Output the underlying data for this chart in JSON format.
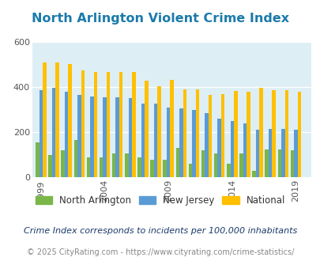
{
  "title": "North Arlington Violent Crime Index",
  "subtitle": "Crime Index corresponds to incidents per 100,000 inhabitants",
  "footer": "© 2025 CityRating.com - https://www.cityrating.com/crime-statistics/",
  "years": [
    1999,
    2000,
    2001,
    2002,
    2003,
    2004,
    2005,
    2006,
    2007,
    2008,
    2009,
    2010,
    2011,
    2012,
    2013,
    2014,
    2015,
    2016,
    2017,
    2018,
    2019
  ],
  "north_arlington": [
    155,
    100,
    120,
    165,
    90,
    90,
    105,
    105,
    90,
    80,
    80,
    130,
    60,
    120,
    105,
    60,
    105,
    30,
    125,
    125,
    120
  ],
  "new_jersey": [
    385,
    395,
    378,
    365,
    358,
    355,
    355,
    350,
    325,
    325,
    310,
    305,
    300,
    285,
    260,
    250,
    240,
    210,
    215,
    215,
    210
  ],
  "national": [
    510,
    510,
    500,
    472,
    465,
    468,
    468,
    465,
    428,
    405,
    430,
    390,
    390,
    365,
    370,
    382,
    380,
    395,
    385,
    385,
    380
  ],
  "xlim_min": 1998.3,
  "xlim_max": 2020.2,
  "ylim": [
    0,
    600
  ],
  "yticks": [
    0,
    200,
    400,
    600
  ],
  "xticks": [
    1999,
    2004,
    2009,
    2014,
    2019
  ],
  "bar_width": 0.28,
  "color_na": "#7ab648",
  "color_nj": "#5b9bd5",
  "color_national": "#ffc000",
  "bg_color": "#deeef5",
  "title_color": "#1a7aab",
  "subtitle_color": "#1a3a6a",
  "footer_color": "#888888",
  "title_fontsize": 11.5,
  "subtitle_fontsize": 8,
  "footer_fontsize": 7,
  "legend_fontsize": 8.5
}
